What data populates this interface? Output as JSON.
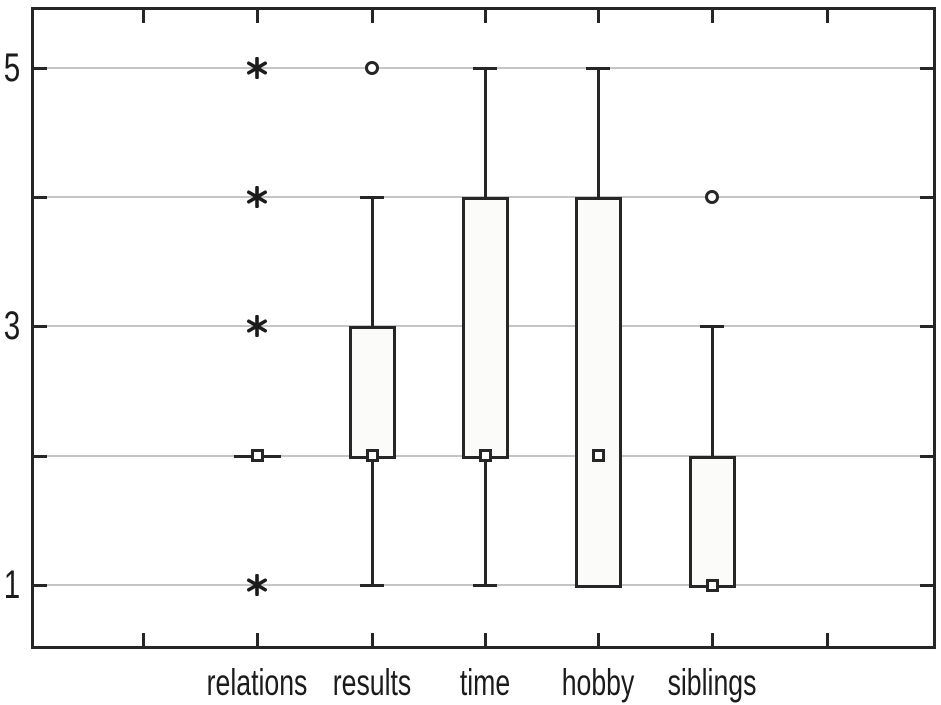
{
  "chart_data": {
    "type": "boxplot",
    "title": "",
    "xlabel": "",
    "ylabel": "",
    "categories": [
      "relations",
      "results",
      "time",
      "hobby",
      "siblings"
    ],
    "y_axis": {
      "range": [
        0.5,
        5.5
      ],
      "gridline_values": [
        1,
        2,
        3,
        4,
        5
      ],
      "tick_values": [
        5,
        3,
        1
      ],
      "tick_labels": [
        "5",
        "3",
        "1"
      ],
      "grid": true
    },
    "x_axis": {
      "tick_slots": 7,
      "labeled_slots": [
        1,
        2,
        3,
        4,
        5
      ],
      "note": "first and last tick positions unlabeled"
    },
    "series": [
      {
        "name": "relations",
        "q1": 2,
        "median": 2,
        "q3": 2,
        "whisker_low": 2,
        "whisker_high": 2,
        "outliers": [],
        "extremes": [
          1,
          3,
          4,
          5
        ]
      },
      {
        "name": "results",
        "q1": 2,
        "median": 2,
        "q3": 3,
        "whisker_low": 1,
        "whisker_high": 4,
        "outliers": [
          5
        ],
        "extremes": []
      },
      {
        "name": "time",
        "q1": 2,
        "median": 2,
        "q3": 4,
        "whisker_low": 1,
        "whisker_high": 5,
        "outliers": [],
        "extremes": []
      },
      {
        "name": "hobby",
        "q1": 1,
        "median": 2,
        "q3": 4,
        "whisker_low": 1,
        "whisker_high": 5,
        "outliers": [],
        "extremes": []
      },
      {
        "name": "siblings",
        "q1": 1,
        "median": 1,
        "q3": 2,
        "whisker_low": 1,
        "whisker_high": 3,
        "outliers": [
          4
        ],
        "extremes": []
      }
    ],
    "legend": null,
    "marker_legend": {
      "median_marker": "small open square",
      "box": "25%-75% quartile range",
      "whiskers": "non-outlier min-max with caps",
      "outlier_marker": "open circle",
      "extreme_marker": "asterisk"
    },
    "colors": {
      "line": "#262626",
      "box_fill": "#fbfbf9",
      "gridline": "#c5c5c5",
      "background": "#ffffff",
      "text": "#1b1b1b"
    }
  }
}
